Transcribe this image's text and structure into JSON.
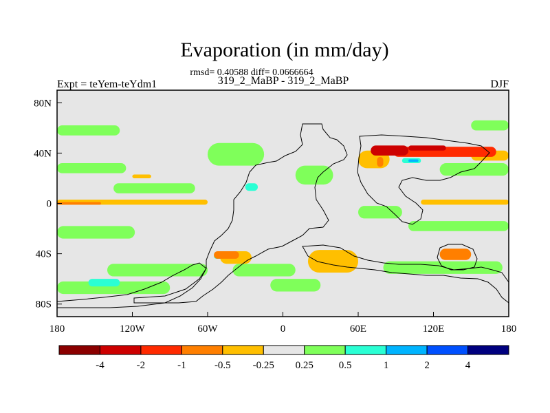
{
  "chart_data": {
    "type": "heatmap",
    "title": "Evaporation (in mm/day)",
    "stats_line": "rmsd= 0.40588 diff= 0.0666664",
    "subtitle": "319_2_MaBP - 319_2_MaBP",
    "left_label": "Expt = teYem-teYdm1",
    "right_label": "DJF",
    "x_ticks": [
      "180",
      "120W",
      "60W",
      "0",
      "60E",
      "120E",
      "180"
    ],
    "y_ticks": [
      "80N",
      "40N",
      "0",
      "40S",
      "80S"
    ],
    "xlim": [
      -180,
      180
    ],
    "ylim": [
      -90,
      90
    ],
    "colorbar": {
      "labels": [
        "-4",
        "-2",
        "-1",
        "-0.5",
        "-0.25",
        "0.25",
        "0.5",
        "1",
        "2",
        "4"
      ],
      "colors": [
        "#8b0000",
        "#cd0000",
        "#ff2a00",
        "#ff7f00",
        "#ffbf00",
        "#e6e6e6",
        "#7fff5a",
        "#2affd4",
        "#00b4ff",
        "#0050ff",
        "#00007f"
      ]
    },
    "regions": [
      {
        "value": 0.35,
        "lon": [
          -180,
          -118
        ],
        "lat": [
          -28,
          -18
        ]
      },
      {
        "value": 0.35,
        "lon": [
          -180,
          -125
        ],
        "lat": [
          24,
          32
        ]
      },
      {
        "value": 0.35,
        "lon": [
          -180,
          -130
        ],
        "lat": [
          54,
          62
        ]
      },
      {
        "value": 0.35,
        "lon": [
          -135,
          -70
        ],
        "lat": [
          8,
          16
        ]
      },
      {
        "value": 0.35,
        "lon": [
          -60,
          -15
        ],
        "lat": [
          30,
          48
        ]
      },
      {
        "value": 0.35,
        "lon": [
          -140,
          -60
        ],
        "lat": [
          -58,
          -48
        ]
      },
      {
        "value": 0.35,
        "lon": [
          -180,
          -90
        ],
        "lat": [
          -72,
          -62
        ]
      },
      {
        "value": 0.35,
        "lon": [
          150,
          180
        ],
        "lat": [
          58,
          66
        ]
      },
      {
        "value": 0.35,
        "lon": [
          125,
          180
        ],
        "lat": [
          22,
          32
        ]
      },
      {
        "value": 0.35,
        "lon": [
          100,
          180
        ],
        "lat": [
          -22,
          -14
        ]
      },
      {
        "value": 0.35,
        "lon": [
          -10,
          30
        ],
        "lat": [
          -70,
          -60
        ]
      },
      {
        "value": 0.35,
        "lon": [
          10,
          40
        ],
        "lat": [
          15,
          30
        ]
      },
      {
        "value": 0.35,
        "lon": [
          60,
          95
        ],
        "lat": [
          -12,
          -2
        ]
      },
      {
        "value": 0.35,
        "lon": [
          -40,
          10
        ],
        "lat": [
          -58,
          -48
        ]
      },
      {
        "value": 0.35,
        "lon": [
          80,
          175
        ],
        "lat": [
          -56,
          -46
        ]
      },
      {
        "value": 0.7,
        "lon": [
          -155,
          -130
        ],
        "lat": [
          -66,
          -60
        ]
      },
      {
        "value": 0.7,
        "lon": [
          -30,
          -20
        ],
        "lat": [
          10,
          16
        ]
      },
      {
        "value": 0.7,
        "lon": [
          -55,
          -45
        ],
        "lat": [
          -44,
          -40
        ]
      },
      {
        "value": 0.7,
        "lon": [
          95,
          110
        ],
        "lat": [
          32,
          36
        ]
      },
      {
        "value": 1.5,
        "lon": [
          100,
          108
        ],
        "lat": [
          33,
          35
        ]
      },
      {
        "value": -0.35,
        "lon": [
          -180,
          -60
        ],
        "lat": [
          -1,
          3
        ]
      },
      {
        "value": -0.35,
        "lon": [
          110,
          180
        ],
        "lat": [
          -1,
          3
        ]
      },
      {
        "value": -0.35,
        "lon": [
          150,
          180
        ],
        "lat": [
          34,
          42
        ]
      },
      {
        "value": -0.35,
        "lon": [
          20,
          60
        ],
        "lat": [
          -55,
          -37
        ]
      },
      {
        "value": -0.35,
        "lon": [
          -50,
          -25
        ],
        "lat": [
          -48,
          -38
        ]
      },
      {
        "value": -0.35,
        "lon": [
          60,
          85
        ],
        "lat": [
          28,
          42
        ]
      },
      {
        "value": -0.35,
        "lon": [
          -120,
          -105
        ],
        "lat": [
          20,
          23
        ]
      },
      {
        "value": -0.7,
        "lon": [
          -180,
          -145
        ],
        "lat": [
          -1,
          1
        ]
      },
      {
        "value": -0.7,
        "lon": [
          -55,
          -35
        ],
        "lat": [
          -44,
          -38
        ]
      },
      {
        "value": -0.7,
        "lon": [
          125,
          150
        ],
        "lat": [
          -45,
          -36
        ]
      },
      {
        "value": -0.7,
        "lon": [
          75,
          80
        ],
        "lat": [
          29,
          37
        ]
      },
      {
        "value": -1.5,
        "lon": [
          88,
          170
        ],
        "lat": [
          37,
          45
        ]
      },
      {
        "value": -3,
        "lon": [
          70,
          100
        ],
        "lat": [
          38,
          46
        ]
      },
      {
        "value": -3,
        "lon": [
          100,
          130
        ],
        "lat": [
          42,
          46
        ]
      }
    ]
  }
}
